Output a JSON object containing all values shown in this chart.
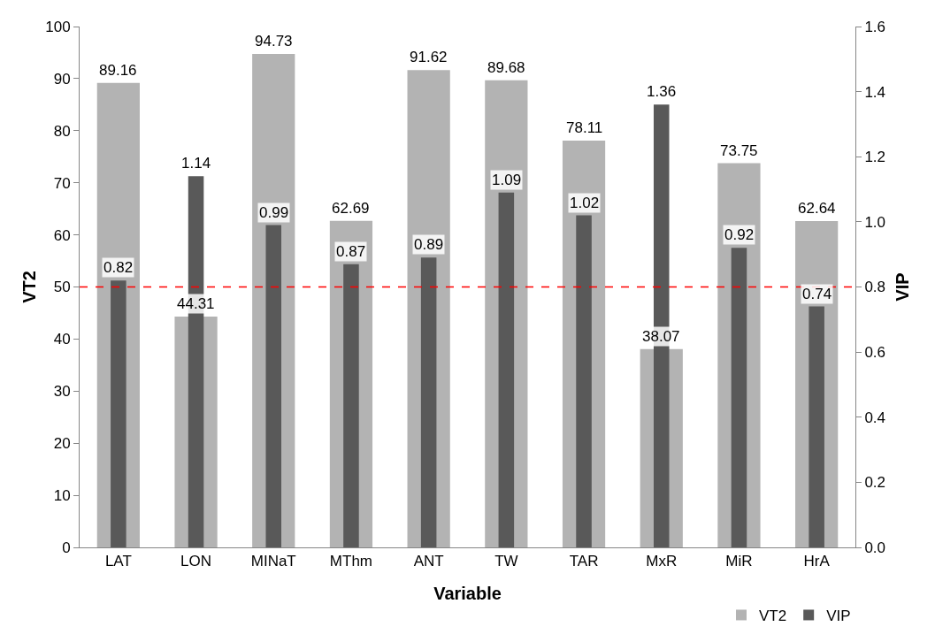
{
  "chart_data": {
    "type": "bar",
    "xlabel": "Variable",
    "ylabel": "VT2",
    "y2label": "VIP",
    "categories": [
      "LAT",
      "LON",
      "MINaT",
      "MThm",
      "ANT",
      "TW",
      "TAR",
      "MxR",
      "MiR",
      "HrA"
    ],
    "series": [
      {
        "name": "VT2",
        "color": "#b3b3b3",
        "values": [
          89.16,
          44.31,
          94.73,
          62.69,
          91.62,
          89.68,
          78.11,
          38.07,
          73.75,
          62.64
        ]
      },
      {
        "name": "VIP",
        "color": "#595959",
        "axis": "y2",
        "values": [
          0.82,
          1.14,
          0.99,
          0.87,
          0.89,
          1.09,
          1.02,
          1.36,
          0.92,
          0.74
        ]
      }
    ],
    "ylim": [
      0,
      100
    ],
    "yticks": [
      0,
      10,
      20,
      30,
      40,
      50,
      60,
      70,
      80,
      90,
      100
    ],
    "y2lim": [
      0,
      1.6
    ],
    "y2ticks": [
      {
        "value": 0,
        "label": "0.0"
      },
      {
        "value": 0.2,
        "label": "0.2"
      },
      {
        "value": 0.4,
        "label": "0.4"
      },
      {
        "value": 0.6,
        "label": "0.6"
      },
      {
        "value": 0.8,
        "label": "0.8"
      },
      {
        "value": 1,
        "label": "1.0"
      },
      {
        "value": 1.2,
        "label": "1.2"
      },
      {
        "value": 1.4,
        "label": "1.4"
      },
      {
        "value": 1.6,
        "label": "1.6"
      }
    ],
    "ref_lines": [
      {
        "axis": "y2",
        "value": 0.8,
        "color": "#ff0000",
        "line_style": "dashed"
      }
    ],
    "data_labels": true,
    "grid": false,
    "legend": "bottom right"
  }
}
